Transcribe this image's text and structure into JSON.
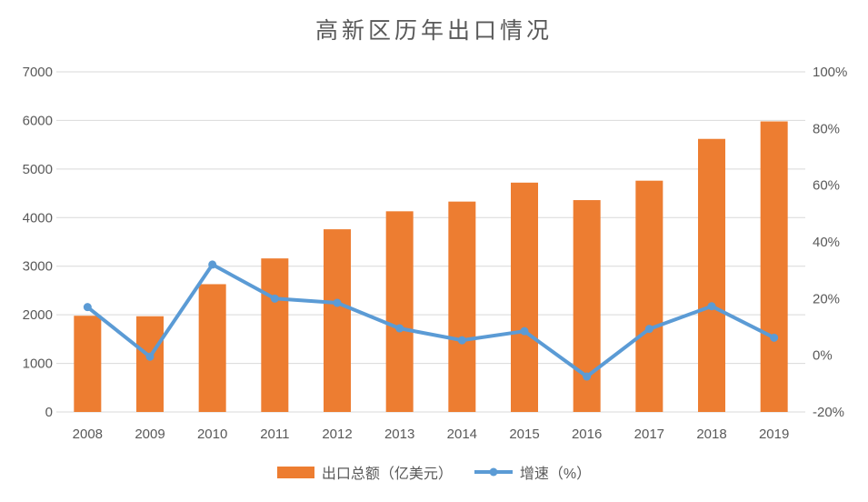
{
  "title": "高新区历年出口情况",
  "chart_data": {
    "type": "combo-bar-line",
    "categories": [
      "2008",
      "2009",
      "2010",
      "2011",
      "2012",
      "2013",
      "2014",
      "2015",
      "2016",
      "2017",
      "2018",
      "2019"
    ],
    "series": [
      {
        "name": "出口总额（亿美元）",
        "type": "bar",
        "axis": "left",
        "color": "#ED7D31",
        "values": [
          1980,
          1970,
          2630,
          3160,
          3760,
          4130,
          4330,
          4720,
          4360,
          4760,
          5620,
          5980
        ]
      },
      {
        "name": "增速（%）",
        "type": "line",
        "axis": "right",
        "color": "#5B9BD5",
        "values": [
          17,
          -0.5,
          32,
          20,
          18.5,
          9.5,
          5.3,
          8.5,
          -7.5,
          9.3,
          17.3,
          6.2
        ]
      }
    ],
    "left_axis": {
      "min": 0,
      "max": 7000,
      "step": 1000,
      "tick_labels": [
        "0",
        "1000",
        "2000",
        "3000",
        "4000",
        "5000",
        "6000",
        "7000"
      ]
    },
    "right_axis": {
      "min": -20,
      "max": 100,
      "step": 20,
      "tick_labels": [
        "-20%",
        "0%",
        "20%",
        "40%",
        "60%",
        "80%",
        "100%"
      ]
    },
    "grid": true,
    "legend_position": "bottom",
    "colors": {
      "grid": "#D9D9D9",
      "axis_text": "#595959",
      "title_text": "#595959",
      "background": "#FFFFFF"
    }
  }
}
